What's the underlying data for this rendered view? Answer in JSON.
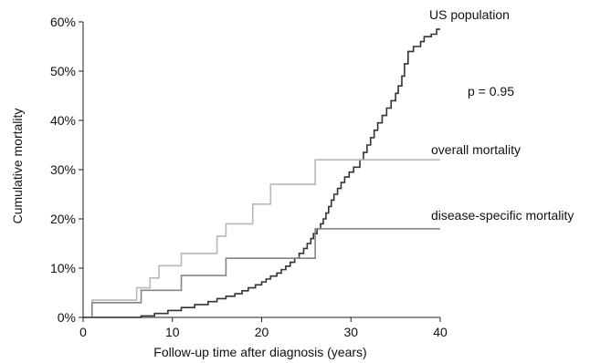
{
  "chart_data": {
    "type": "line",
    "ylabel": "Cumulative mortality",
    "xlabel": "Follow-up time after diagnosis (years)",
    "xlim": [
      0,
      40
    ],
    "ylim": [
      0,
      60
    ],
    "x_ticks": [
      0,
      10,
      20,
      30,
      40
    ],
    "y_ticks": [
      0,
      10,
      20,
      30,
      40,
      50,
      60
    ],
    "y_tick_labels": [
      "0%",
      "10%",
      "20%",
      "30%",
      "40%",
      "50%",
      "60%"
    ],
    "annotation": "p = 0.95",
    "grid": false,
    "series": [
      {
        "name": "US population",
        "color": "#333333",
        "points": [
          [
            0,
            0
          ],
          [
            6.5,
            0
          ],
          [
            6.5,
            0.3
          ],
          [
            8,
            0.3
          ],
          [
            8,
            0.8
          ],
          [
            9.5,
            0.8
          ],
          [
            9.5,
            1.4
          ],
          [
            11,
            1.4
          ],
          [
            11,
            2
          ],
          [
            12.5,
            2
          ],
          [
            12.5,
            2.6
          ],
          [
            14,
            2.6
          ],
          [
            14,
            3.2
          ],
          [
            15,
            3.2
          ],
          [
            15,
            3.8
          ],
          [
            16,
            3.8
          ],
          [
            16,
            4.3
          ],
          [
            17,
            4.3
          ],
          [
            17,
            4.8
          ],
          [
            17.8,
            4.8
          ],
          [
            17.8,
            5.4
          ],
          [
            18.5,
            5.4
          ],
          [
            18.5,
            6
          ],
          [
            19.3,
            6
          ],
          [
            19.3,
            6.6
          ],
          [
            20,
            6.6
          ],
          [
            20,
            7.2
          ],
          [
            20.5,
            7.2
          ],
          [
            20.5,
            7.8
          ],
          [
            21,
            7.8
          ],
          [
            21,
            8.4
          ],
          [
            21.7,
            8.4
          ],
          [
            21.7,
            9
          ],
          [
            22.2,
            9
          ],
          [
            22.2,
            9.7
          ],
          [
            22.7,
            9.7
          ],
          [
            22.7,
            10.4
          ],
          [
            23.2,
            10.4
          ],
          [
            23.2,
            11.2
          ],
          [
            23.7,
            11.2
          ],
          [
            23.7,
            12
          ],
          [
            24.2,
            12
          ],
          [
            24.2,
            13
          ],
          [
            24.7,
            13
          ],
          [
            24.7,
            14
          ],
          [
            25.1,
            14
          ],
          [
            25.1,
            15
          ],
          [
            25.5,
            15
          ],
          [
            25.5,
            16
          ],
          [
            25.8,
            16
          ],
          [
            25.8,
            17
          ],
          [
            26.2,
            17
          ],
          [
            26.2,
            18
          ],
          [
            26.6,
            18
          ],
          [
            26.6,
            19
          ],
          [
            26.9,
            19
          ],
          [
            26.9,
            20
          ],
          [
            27.2,
            20
          ],
          [
            27.2,
            21.2
          ],
          [
            27.5,
            21.2
          ],
          [
            27.5,
            22.5
          ],
          [
            27.8,
            22.5
          ],
          [
            27.8,
            23.8
          ],
          [
            28.1,
            23.8
          ],
          [
            28.1,
            25
          ],
          [
            28.5,
            25
          ],
          [
            28.5,
            26.2
          ],
          [
            28.9,
            26.2
          ],
          [
            28.9,
            27.4
          ],
          [
            29.3,
            27.4
          ],
          [
            29.3,
            28.5
          ],
          [
            29.8,
            28.5
          ],
          [
            29.8,
            29.5
          ],
          [
            30.3,
            29.5
          ],
          [
            30.3,
            30.5
          ],
          [
            31,
            30.5
          ],
          [
            31,
            32
          ],
          [
            31.4,
            32
          ],
          [
            31.4,
            33.5
          ],
          [
            31.8,
            33.5
          ],
          [
            31.8,
            35
          ],
          [
            32.2,
            35
          ],
          [
            32.2,
            36.5
          ],
          [
            32.6,
            36.5
          ],
          [
            32.6,
            38
          ],
          [
            33,
            38
          ],
          [
            33,
            39.5
          ],
          [
            33.5,
            39.5
          ],
          [
            33.5,
            41
          ],
          [
            34,
            41
          ],
          [
            34,
            42.5
          ],
          [
            34.5,
            42.5
          ],
          [
            34.5,
            44
          ],
          [
            35,
            44
          ],
          [
            35,
            45.5
          ],
          [
            35.3,
            45.5
          ],
          [
            35.3,
            47
          ],
          [
            35.7,
            47
          ],
          [
            35.7,
            49
          ],
          [
            36,
            49
          ],
          [
            36,
            51.5
          ],
          [
            36.4,
            51.5
          ],
          [
            36.4,
            54
          ],
          [
            37,
            54
          ],
          [
            37,
            55
          ],
          [
            37.8,
            55
          ],
          [
            37.8,
            56
          ],
          [
            38.2,
            56
          ],
          [
            38.2,
            57
          ],
          [
            39,
            57
          ],
          [
            39,
            57.5
          ],
          [
            39.6,
            57.5
          ],
          [
            39.6,
            58.5
          ],
          [
            40,
            58.5
          ]
        ]
      },
      {
        "name": "overall mortality",
        "color": "#b8b8b8",
        "points": [
          [
            0,
            0
          ],
          [
            1,
            0
          ],
          [
            1,
            3.5
          ],
          [
            6,
            3.5
          ],
          [
            6,
            6
          ],
          [
            7.5,
            6
          ],
          [
            7.5,
            8
          ],
          [
            8.5,
            8
          ],
          [
            8.5,
            10.5
          ],
          [
            11,
            10.5
          ],
          [
            11,
            13
          ],
          [
            15,
            13
          ],
          [
            15,
            16.5
          ],
          [
            16,
            16.5
          ],
          [
            16,
            19
          ],
          [
            19,
            19
          ],
          [
            19,
            23
          ],
          [
            21,
            23
          ],
          [
            21,
            27
          ],
          [
            26,
            27
          ],
          [
            26,
            32
          ],
          [
            40,
            32
          ]
        ]
      },
      {
        "name": "disease-specific mortality",
        "color": "#858585",
        "points": [
          [
            0,
            0
          ],
          [
            1,
            0
          ],
          [
            1,
            3
          ],
          [
            6.5,
            3
          ],
          [
            6.5,
            5.5
          ],
          [
            11,
            5.5
          ],
          [
            11,
            8.5
          ],
          [
            16,
            8.5
          ],
          [
            16,
            12
          ],
          [
            26,
            12
          ],
          [
            26,
            18
          ],
          [
            40,
            18
          ]
        ]
      }
    ]
  }
}
